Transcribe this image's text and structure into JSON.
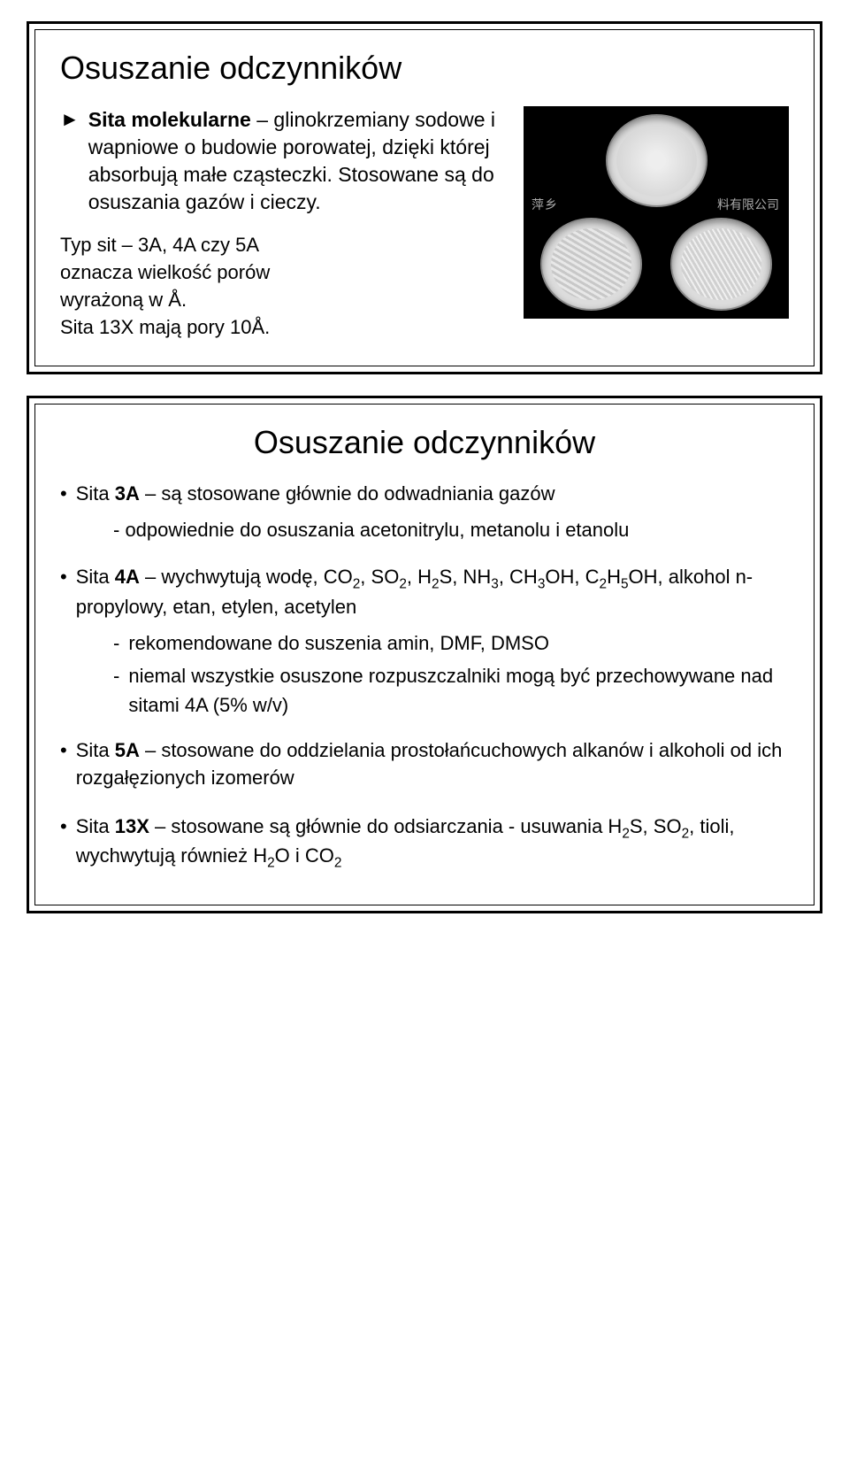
{
  "slide1": {
    "title": "Osuszanie odczynników",
    "bullet_html": "<b>Sita molekularne</b> – glinokrzemiany sodowe i wapniowe o budowie porowatej, dzięki której absorbują małe cząsteczki. Stosowane są do osuszania gazów i cieczy.",
    "para_line1": "Typ sit – 3A, 4A czy 5A",
    "para_line2": "oznacza wielkość porów",
    "para_line3": "wyrażoną w Å.",
    "para_line4": "Sita 13X mają pory 10Å.",
    "watermark_left": "萍乡",
    "watermark_right": "料有限公司"
  },
  "slide2": {
    "title": "Osuszanie odczynników",
    "b1_html": "Sita <b>3A</b> – są stosowane głównie do odwadniania gazów",
    "b1_sub": "- odpowiednie do osuszania acetonitrylu, metanolu i etanolu",
    "b2_html": "Sita <b>4A</b> – wychwytują wodę, CO<sub>2</sub>, SO<sub>2</sub>, H<sub>2</sub>S, NH<sub>3</sub>, CH<sub>3</sub>OH, C<sub>2</sub>H<sub>5</sub>OH, alkohol n-propylowy, etan, etylen, acetylen",
    "b2_d1": "rekomendowane do suszenia amin, DMF, DMSO",
    "b2_d2": "niemal wszystkie osuszone rozpuszczalniki mogą być przechowywane nad sitami 4A (5% w/v)",
    "b3_html": "Sita <b>5A</b> – stosowane do oddzielania prostołańcuchowych alkanów i alkoholi od ich rozgałęzionych izomerów",
    "b4_html": "Sita <b>13X</b> – stosowane są głównie do odsiarczania - usuwania H<sub>2</sub>S, SO<sub>2</sub>, tioli, wychwytują również H<sub>2</sub>O i CO<sub>2</sub>"
  }
}
